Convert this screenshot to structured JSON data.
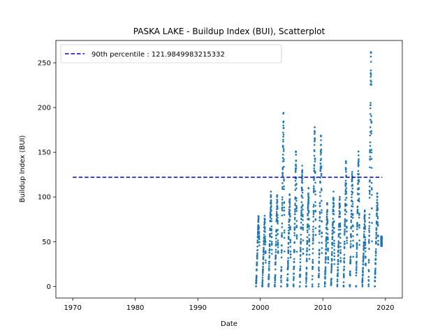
{
  "chart_data": {
    "type": "scatter",
    "title": "PASKA LAKE - Buildup Index (BUI), Scatterplot",
    "xlabel": "Date",
    "ylabel": "Buildup Index (BUI)",
    "xlim": [
      1967.3,
      2022.7
    ],
    "ylim": [
      -13,
      275
    ],
    "x_ticks": [
      1970,
      1980,
      1990,
      2000,
      2010,
      2020
    ],
    "y_ticks": [
      0,
      50,
      100,
      150,
      200,
      250
    ],
    "marker_color": "#1f77b4",
    "legend_position": "upper left",
    "reference_line": {
      "label": "90th percentile : 121.9849983215332",
      "value": 121.9849983215332,
      "x_range": [
        1970,
        2019.5
      ],
      "color": "#0000cc",
      "style": "dashed"
    },
    "series": [
      {
        "seasons": [
          {
            "year": 1999,
            "peak": 79,
            "end": 45
          },
          {
            "year": 2000,
            "peak": 79,
            "end": 30
          },
          {
            "year": 2001,
            "peak": 106,
            "end": 40
          },
          {
            "year": 2002,
            "peak": 102,
            "end": 35
          },
          {
            "year": 2003,
            "peak": 194,
            "end": 50
          },
          {
            "year": 2004,
            "peak": 103,
            "end": 30
          },
          {
            "year": 2005,
            "peak": 151,
            "end": 45
          },
          {
            "year": 2006,
            "peak": 135,
            "end": 40
          },
          {
            "year": 2007,
            "peak": 110,
            "end": 35
          },
          {
            "year": 2008,
            "peak": 178,
            "end": 60
          },
          {
            "year": 2009,
            "peak": 169,
            "end": 40
          },
          {
            "year": 2010,
            "peak": 93,
            "end": 25
          },
          {
            "year": 2011,
            "peak": 106,
            "end": 30
          },
          {
            "year": 2012,
            "peak": 100,
            "end": 30
          },
          {
            "year": 2013,
            "peak": 140,
            "end": 45
          },
          {
            "year": 2014,
            "peak": 131,
            "end": 40
          },
          {
            "year": 2015,
            "peak": 151,
            "end": 50
          },
          {
            "year": 2016,
            "peak": 85,
            "end": 20
          },
          {
            "year": 2017,
            "peak": 262,
            "end": 60
          },
          {
            "year": 2018,
            "peak": 104,
            "end": 45
          },
          {
            "year": 2019,
            "peak": 56,
            "end": 47
          }
        ]
      }
    ]
  }
}
